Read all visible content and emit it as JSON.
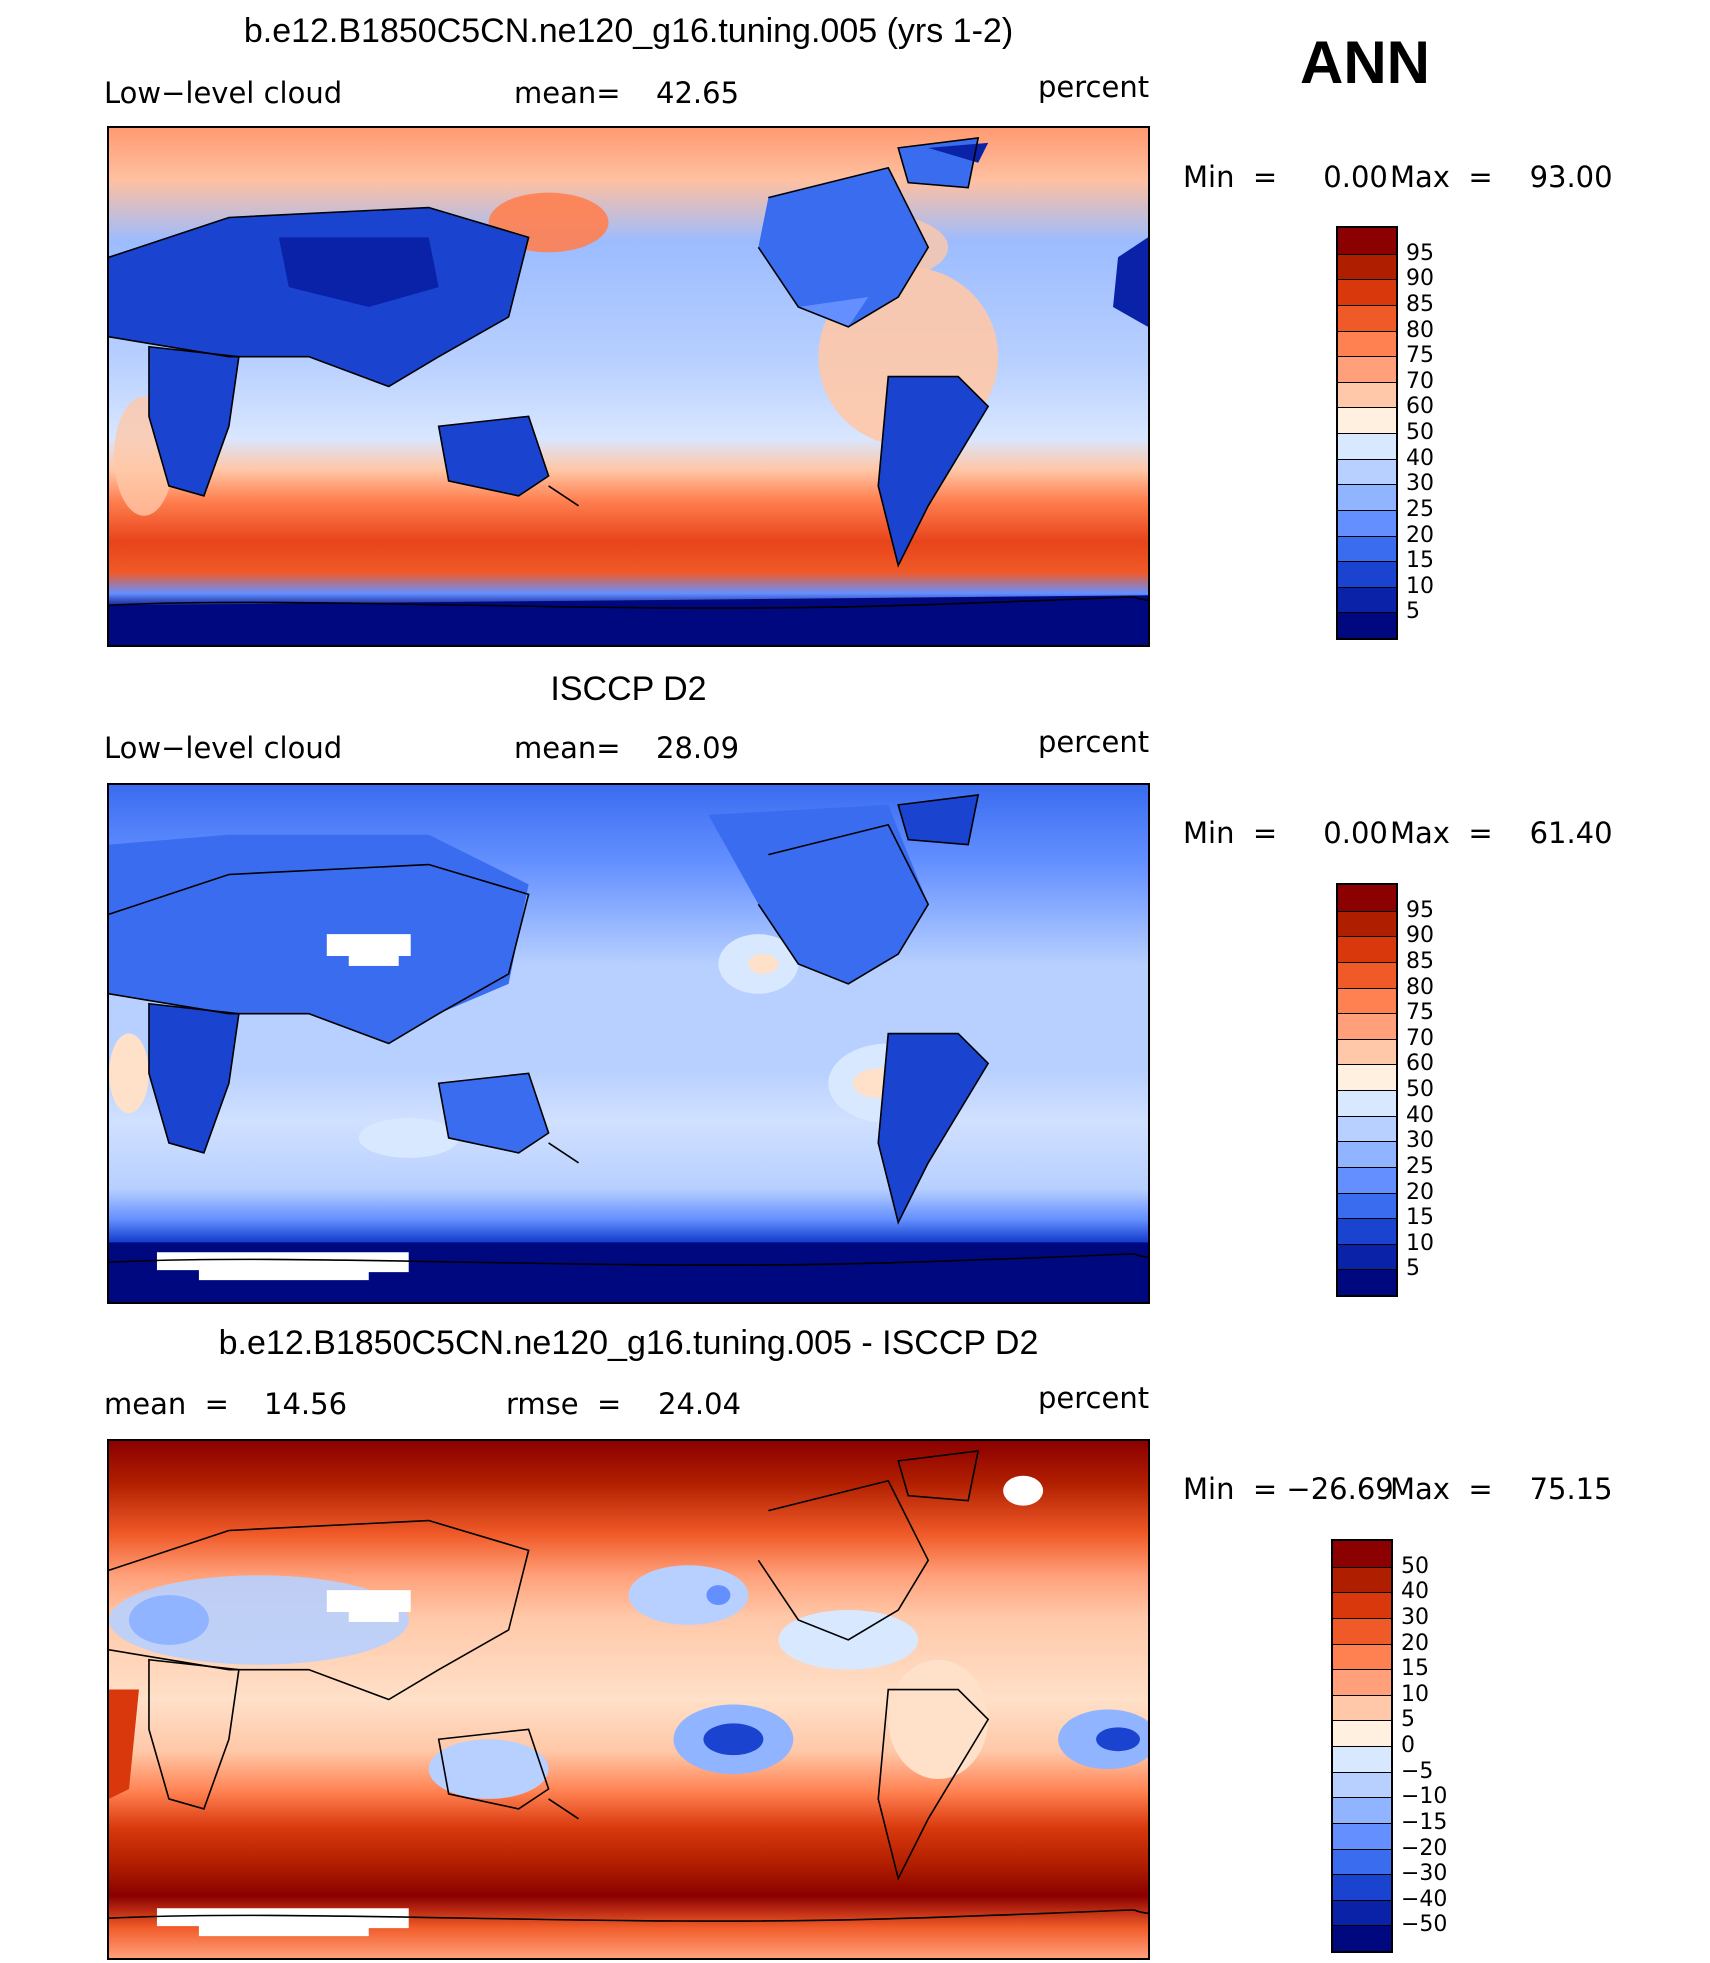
{
  "season": "ANN",
  "panels": [
    {
      "title": "b.e12.B1850C5CN.ne120_g16.tuning.005 (yrs 1-2)",
      "left_label": "Low−level cloud",
      "stat_label": "mean=",
      "stat_value": "42.65",
      "units": "percent",
      "range_text_min": "Min  =     0.00",
      "range_text_max": "Max  =    93.00",
      "colorbar_levels": [
        "95",
        "90",
        "85",
        "80",
        "75",
        "70",
        "60",
        "50",
        "40",
        "30",
        "25",
        "20",
        "15",
        "10",
        "5"
      ],
      "colorbar_colors": [
        "#8b0000",
        "#b01e00",
        "#d8380c",
        "#f05a28",
        "#ff8050",
        "#ffa07a",
        "#ffc8a8",
        "#fff0e0",
        "#d8e8ff",
        "#b8d0ff",
        "#90b4ff",
        "#6490ff",
        "#3a6cf0",
        "#1a44d0",
        "#0a22a8",
        "#000880"
      ]
    },
    {
      "title": "ISCCP D2",
      "left_label": "Low−level cloud",
      "stat_label": "mean=",
      "stat_value": "28.09",
      "units": "percent",
      "range_text_min": "Min  =     0.00",
      "range_text_max": "Max  =    61.40",
      "colorbar_levels": [
        "95",
        "90",
        "85",
        "80",
        "75",
        "70",
        "60",
        "50",
        "40",
        "30",
        "25",
        "20",
        "15",
        "10",
        "5"
      ],
      "colorbar_colors": [
        "#8b0000",
        "#b01e00",
        "#d8380c",
        "#f05a28",
        "#ff8050",
        "#ffa07a",
        "#ffc8a8",
        "#fff0e0",
        "#d8e8ff",
        "#b8d0ff",
        "#90b4ff",
        "#6490ff",
        "#3a6cf0",
        "#1a44d0",
        "#0a22a8",
        "#000880"
      ]
    },
    {
      "title": "b.e12.B1850C5CN.ne120_g16.tuning.005 - ISCCP D2",
      "left_label": "mean  =",
      "left_value": "14.56",
      "stat_label": "rmse  =",
      "stat_value": "24.04",
      "units": "percent",
      "range_text_min": "Min  = −26.69",
      "range_text_max": "Max  =    75.15",
      "colorbar_levels": [
        "50",
        "40",
        "30",
        "20",
        "15",
        "10",
        "5",
        "0",
        "−5",
        "−10",
        "−15",
        "−20",
        "−30",
        "−40",
        "−50"
      ],
      "colorbar_colors": [
        "#8b0000",
        "#b01e00",
        "#d8380c",
        "#f05a28",
        "#ff8050",
        "#ffa07a",
        "#ffc8a8",
        "#fff0e0",
        "#d8e8ff",
        "#b8d0ff",
        "#90b4ff",
        "#6490ff",
        "#3a6cf0",
        "#1a44d0",
        "#0a22a8",
        "#000880"
      ]
    }
  ]
}
